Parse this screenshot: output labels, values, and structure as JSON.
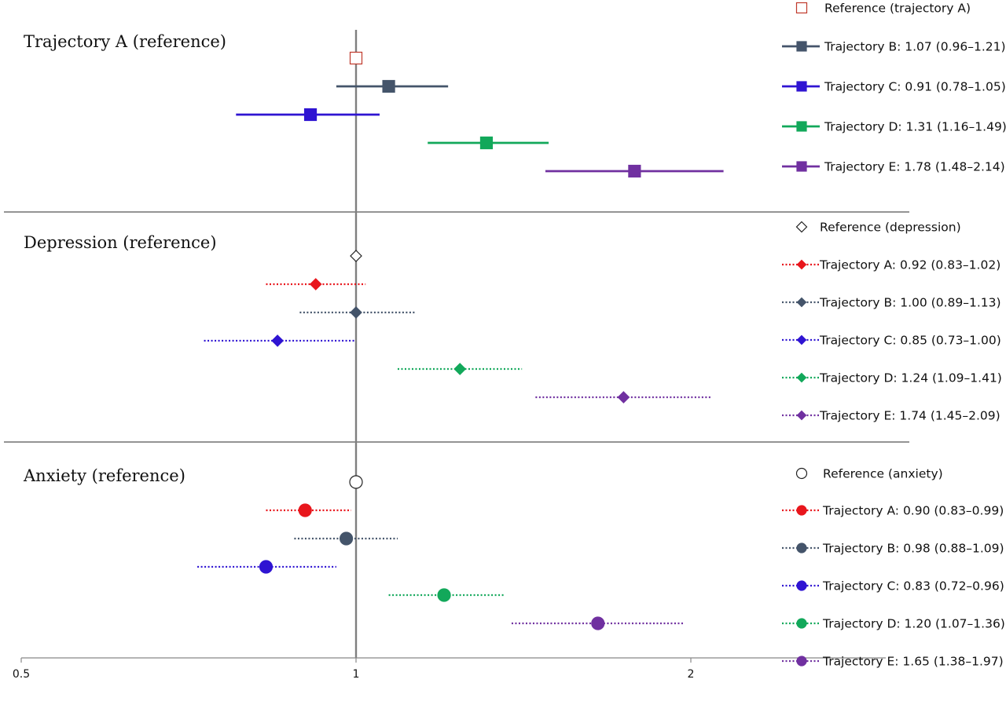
{
  "chart_data": {
    "type": "forest",
    "x_axis": {
      "scale": "log",
      "ticks": [
        0.5,
        1,
        2
      ],
      "tick_labels": [
        "0.5",
        "1",
        "2"
      ],
      "range": [
        0.5,
        3.0
      ],
      "reference_line": 1
    },
    "colors": {
      "A": "#e8161c",
      "B": "#44546a",
      "C": "#2f14d2",
      "D": "#12a85a",
      "E": "#7030a0"
    },
    "panels": [
      {
        "title": "Trajectory A (reference)",
        "marker": "square",
        "line_style": "solid",
        "reference_label": "Reference (trajectory A)",
        "reference_color": "#c0392b",
        "rows": [
          {
            "key": "B",
            "label": "Trajectory B: 1.07 (0.96–1.21)",
            "estimate": 1.07,
            "lower": 0.96,
            "upper": 1.21
          },
          {
            "key": "C",
            "label": "Trajectory C: 0.91 (0.78–1.05)",
            "estimate": 0.91,
            "lower": 0.78,
            "upper": 1.05
          },
          {
            "key": "D",
            "label": "Trajectory D: 1.31 (1.16–1.49)",
            "estimate": 1.31,
            "lower": 1.16,
            "upper": 1.49
          },
          {
            "key": "E",
            "label": "Trajectory E: 1.78 (1.48–2.14)",
            "estimate": 1.78,
            "lower": 1.48,
            "upper": 2.14
          }
        ]
      },
      {
        "title": "Depression (reference)",
        "marker": "diamond",
        "line_style": "dotted",
        "reference_label": "Reference (depression)",
        "reference_color": "#222222",
        "rows": [
          {
            "key": "A",
            "label": "Trajectory A: 0.92 (0.83–1.02)",
            "estimate": 0.92,
            "lower": 0.83,
            "upper": 1.02
          },
          {
            "key": "B",
            "label": "Trajectory B: 1.00 (0.89–1.13)",
            "estimate": 1.0,
            "lower": 0.89,
            "upper": 1.13
          },
          {
            "key": "C",
            "label": "Trajectory C: 0.85 (0.73–1.00)",
            "estimate": 0.85,
            "lower": 0.73,
            "upper": 1.0
          },
          {
            "key": "D",
            "label": "Trajectory D: 1.24 (1.09–1.41)",
            "estimate": 1.24,
            "lower": 1.09,
            "upper": 1.41
          },
          {
            "key": "E",
            "label": "Trajectory E: 1.74 (1.45–2.09)",
            "estimate": 1.74,
            "lower": 1.45,
            "upper": 2.09
          }
        ]
      },
      {
        "title": "Anxiety (reference)",
        "marker": "circle",
        "line_style": "dotted",
        "reference_label": "Reference (anxiety)",
        "reference_color": "#222222",
        "rows": [
          {
            "key": "A",
            "label": "Trajectory A: 0.90 (0.83–0.99)",
            "estimate": 0.9,
            "lower": 0.83,
            "upper": 0.99
          },
          {
            "key": "B",
            "label": "Trajectory B: 0.98 (0.88–1.09)",
            "estimate": 0.98,
            "lower": 0.88,
            "upper": 1.09
          },
          {
            "key": "C",
            "label": "Trajectory C: 0.83 (0.72–0.96)",
            "estimate": 0.83,
            "lower": 0.72,
            "upper": 0.96
          },
          {
            "key": "D",
            "label": "Trajectory D: 1.20 (1.07–1.36)",
            "estimate": 1.2,
            "lower": 1.07,
            "upper": 1.36
          },
          {
            "key": "E",
            "label": "Trajectory E: 1.65 (1.38–1.97)",
            "estimate": 1.65,
            "lower": 1.38,
            "upper": 1.97
          }
        ]
      }
    ]
  }
}
